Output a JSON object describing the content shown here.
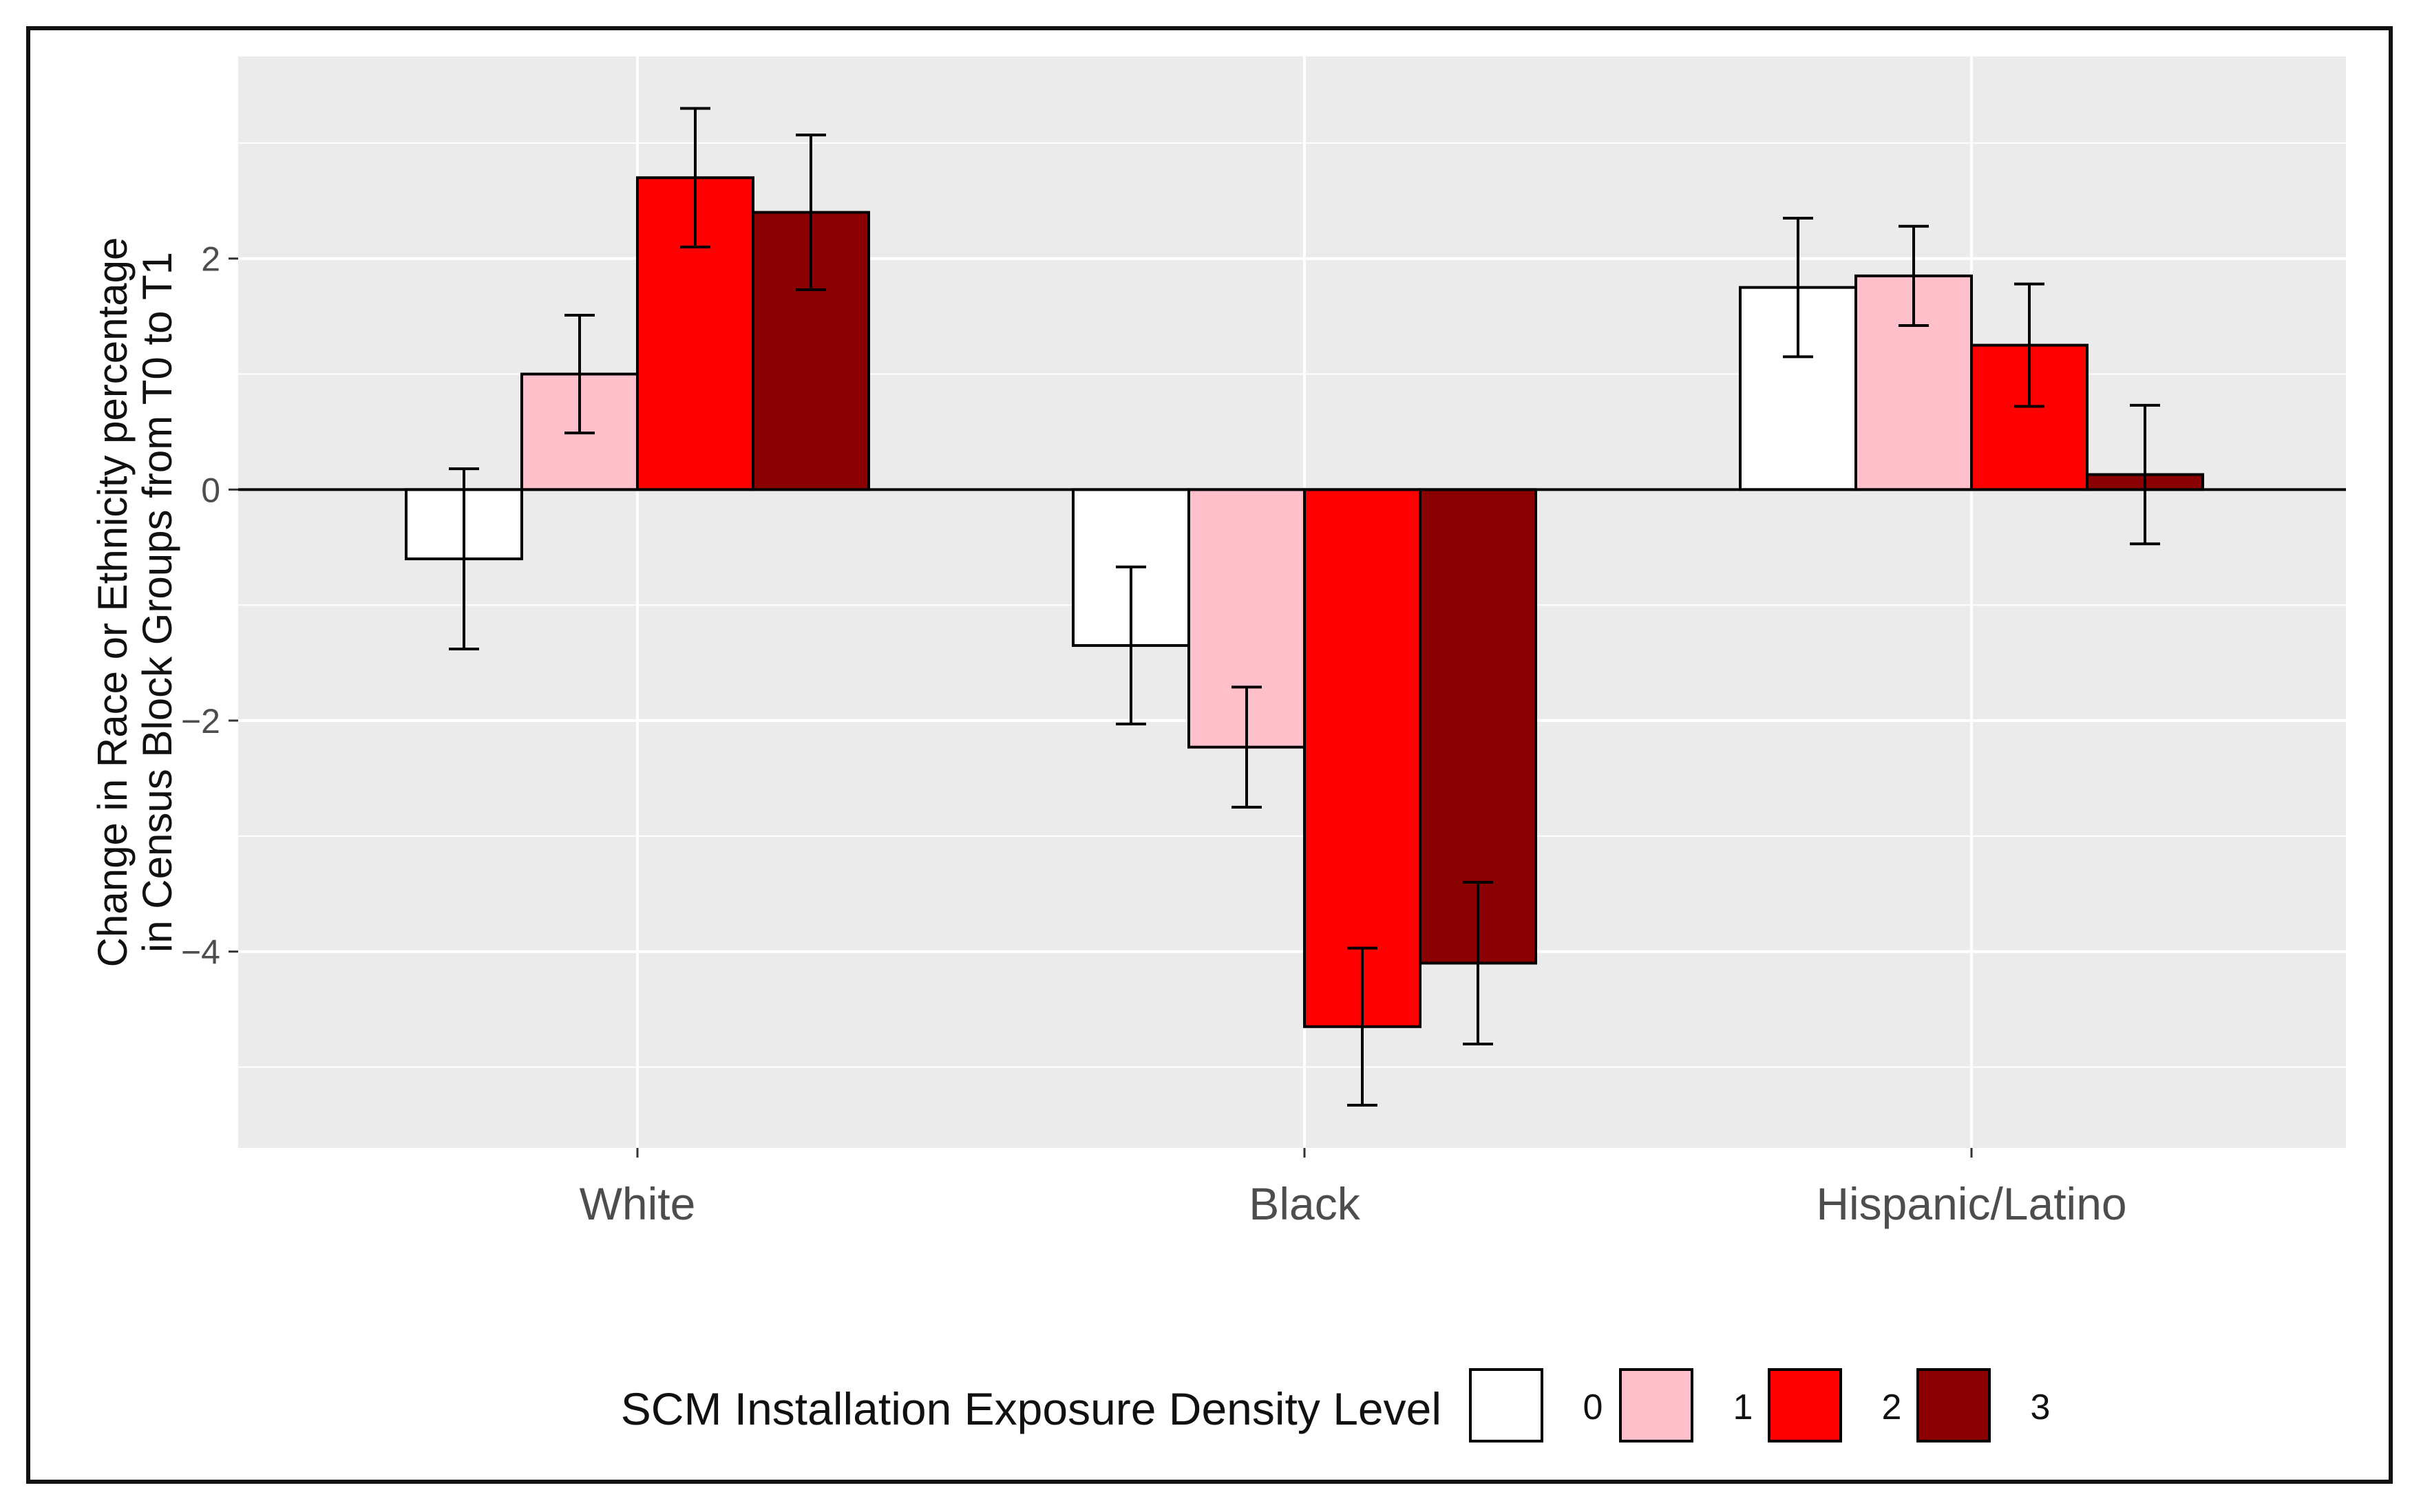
{
  "chart_data": {
    "type": "bar",
    "categories": [
      "White",
      "Black",
      "Hispanic/Latino"
    ],
    "series": [
      {
        "name": "0",
        "color": "#ffffff",
        "values": [
          -0.6,
          -1.35,
          1.75
        ],
        "error": [
          0.78,
          0.68,
          0.6
        ]
      },
      {
        "name": "1",
        "color": "#ffc0cb",
        "values": [
          1.0,
          -2.23,
          1.85
        ],
        "error": [
          0.51,
          0.52,
          0.43
        ]
      },
      {
        "name": "2",
        "color": "#ff0000",
        "values": [
          2.7,
          -4.65,
          1.25
        ],
        "error": [
          0.6,
          0.68,
          0.53
        ]
      },
      {
        "name": "3",
        "color": "#8b0000",
        "values": [
          2.4,
          -4.1,
          0.13
        ],
        "error": [
          0.67,
          0.7,
          0.6
        ]
      }
    ],
    "ylabel_lines": [
      "Change in Race or Ethnicity percentage",
      "in Census Block Groups from T0 to T1"
    ],
    "xlabel": "",
    "ylim": [
      -5.7,
      3.75
    ],
    "yticks": [
      -4,
      -2,
      0,
      2
    ],
    "ytick_labels": [
      "−4",
      "−2",
      "0",
      "2"
    ],
    "grid": true,
    "legend": {
      "title": "SCM Installation Exposure Density Level",
      "position": "bottom"
    }
  }
}
